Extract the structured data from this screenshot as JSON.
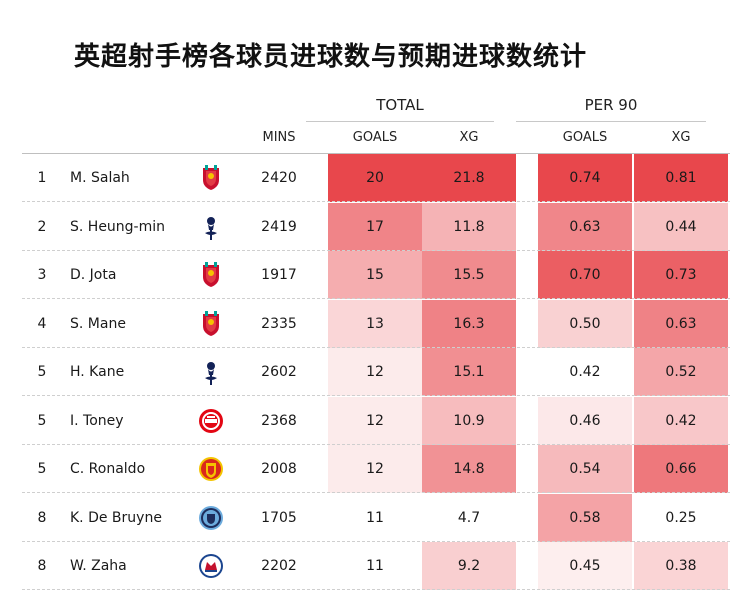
{
  "title": "英超射手榜各球员进球数与预期进球数统计",
  "colors": {
    "heat_high": "#e8474c",
    "heat_low": "#ffffff"
  },
  "chart_data": {
    "type": "table",
    "group_headers": [
      "TOTAL",
      "PER 90"
    ],
    "columns": [
      "",
      "",
      "",
      "MINS",
      "GOALS",
      "XG",
      "GOALS",
      "XG"
    ],
    "col_keys": [
      "rank",
      "player",
      "club",
      "mins",
      "total_goals",
      "total_xg",
      "per90_goals",
      "per90_xg"
    ],
    "rows": [
      {
        "rank": "1",
        "player": "M. Salah",
        "club_icon": "liverpool-crest",
        "mins": 2420,
        "total_goals": 20,
        "total_xg": 21.8,
        "per90_goals": "0.74",
        "per90_xg": "0.81"
      },
      {
        "rank": "2",
        "player": "S. Heung-min",
        "club_icon": "tottenham-crest",
        "mins": 2419,
        "total_goals": 17,
        "total_xg": 11.8,
        "per90_goals": "0.63",
        "per90_xg": "0.44"
      },
      {
        "rank": "3",
        "player": "D. Jota",
        "club_icon": "liverpool-crest",
        "mins": 1917,
        "total_goals": 15,
        "total_xg": 15.5,
        "per90_goals": "0.70",
        "per90_xg": "0.73"
      },
      {
        "rank": "4",
        "player": "S. Mane",
        "club_icon": "liverpool-crest",
        "mins": 2335,
        "total_goals": 13,
        "total_xg": 16.3,
        "per90_goals": "0.50",
        "per90_xg": "0.63"
      },
      {
        "rank": "5",
        "player": "H. Kane",
        "club_icon": "tottenham-crest",
        "mins": 2602,
        "total_goals": 12,
        "total_xg": 15.1,
        "per90_goals": "0.42",
        "per90_xg": "0.52"
      },
      {
        "rank": "5",
        "player": "I. Toney",
        "club_icon": "brentford-crest",
        "mins": 2368,
        "total_goals": 12,
        "total_xg": 10.9,
        "per90_goals": "0.46",
        "per90_xg": "0.42"
      },
      {
        "rank": "5",
        "player": "C. Ronaldo",
        "club_icon": "man-united-crest",
        "mins": 2008,
        "total_goals": 12,
        "total_xg": 14.8,
        "per90_goals": "0.54",
        "per90_xg": "0.66"
      },
      {
        "rank": "8",
        "player": "K. De Bruyne",
        "club_icon": "man-city-crest",
        "mins": 1705,
        "total_goals": 11,
        "total_xg": 4.7,
        "per90_goals": "0.58",
        "per90_xg": "0.25"
      },
      {
        "rank": "8",
        "player": "W. Zaha",
        "club_icon": "crystal-palace-crest",
        "mins": 2202,
        "total_goals": 11,
        "total_xg": 9.2,
        "per90_goals": "0.45",
        "per90_xg": "0.38"
      }
    ]
  }
}
